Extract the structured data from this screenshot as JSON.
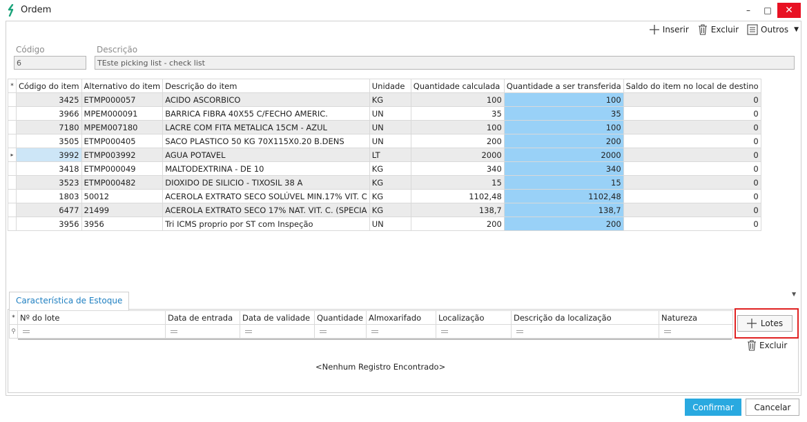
{
  "window": {
    "title": "Ordem",
    "minimize": "–",
    "maximize": "□",
    "close": "✕"
  },
  "toolbar": {
    "inserir": "Inserir",
    "excluir": "Excluir",
    "outros": "Outros",
    "icons": [
      "plus-icon",
      "trash-icon",
      "list-icon",
      "caret-down-icon"
    ]
  },
  "form": {
    "codigo_label": "Código",
    "codigo_value": "6",
    "descricao_label": "Descrição",
    "descricao_value": "TEste picking list - check list"
  },
  "items_grid": {
    "columns": [
      "Código do item",
      "Alternativo do item",
      "Descrição do item",
      "Unidade",
      "Quantidade calculada",
      "Quantidade a ser transferida",
      "Saldo do item no local de destino"
    ],
    "corner": "*",
    "current_row_marker": "▸",
    "rows": [
      {
        "codigo": "3425",
        "alternativo": "ETMP000057",
        "descricao": "ACIDO ASCORBICO",
        "unidade": "KG",
        "qtd_calc": "100",
        "qtd_transf": "100",
        "saldo": "0"
      },
      {
        "codigo": "3966",
        "alternativo": "MPEM000091",
        "descricao": "BARRICA FIBRA 40X55 C/FECHO AMERIC.",
        "unidade": "UN",
        "qtd_calc": "35",
        "qtd_transf": "35",
        "saldo": "0"
      },
      {
        "codigo": "7180",
        "alternativo": "MPEM007180",
        "descricao": "LACRE COM FITA METALICA 15CM - AZUL",
        "unidade": "UN",
        "qtd_calc": "100",
        "qtd_transf": "100",
        "saldo": "0"
      },
      {
        "codigo": "3505",
        "alternativo": "ETMP000405",
        "descricao": "SACO PLASTICO 50 KG 70X115X0.20 B.DENS",
        "unidade": "UN",
        "qtd_calc": "200",
        "qtd_transf": "200",
        "saldo": "0"
      },
      {
        "codigo": "3992",
        "alternativo": "ETMP003992",
        "descricao": "AGUA POTAVEL",
        "unidade": "LT",
        "qtd_calc": "2000",
        "qtd_transf": "2000",
        "saldo": "0"
      },
      {
        "codigo": "3418",
        "alternativo": "ETMP000049",
        "descricao": "MALTODEXTRINA - DE 10",
        "unidade": "KG",
        "qtd_calc": "340",
        "qtd_transf": "340",
        "saldo": "0"
      },
      {
        "codigo": "3523",
        "alternativo": "ETMP000482",
        "descricao": "DIOXIDO DE SILICIO - TIXOSIL 38 A",
        "unidade": "KG",
        "qtd_calc": "15",
        "qtd_transf": "15",
        "saldo": "0"
      },
      {
        "codigo": "1803",
        "alternativo": "50012",
        "descricao": "ACEROLA EXTRATO SECO SOLÚVEL MIN.17% VIT. C",
        "unidade": "KG",
        "qtd_calc": "1102,48",
        "qtd_transf": "1102,48",
        "saldo": "0"
      },
      {
        "codigo": "6477",
        "alternativo": "21499",
        "descricao": "ACEROLA EXTRATO SECO 17% NAT. VIT. C. (SPECIA",
        "unidade": "KG",
        "qtd_calc": "138,7",
        "qtd_transf": "138,7",
        "saldo": "0"
      },
      {
        "codigo": "3956",
        "alternativo": "3956",
        "descricao": "Tri ICMS proprio por ST com Inspeção",
        "unidade": "UN",
        "qtd_calc": "200",
        "qtd_transf": "200",
        "saldo": "0"
      }
    ]
  },
  "tab": {
    "label": "Característica de Estoque"
  },
  "lots_grid": {
    "corner": "*",
    "filter_marker": "⚲",
    "columns": [
      "Nº do lote",
      "Data de entrada",
      "Data de validade",
      "Quantidade",
      "Almoxarifado",
      "Localização",
      "Descrição da localização",
      "Natureza"
    ],
    "empty_message": "<Nenhum Registro Encontrado>"
  },
  "side_actions": {
    "lotes": "Lotes",
    "excluir": "Excluir"
  },
  "footer": {
    "confirmar": "Confirmar",
    "cancelar": "Cancelar"
  },
  "colors": {
    "accent": "#29a9e0",
    "highlight_cell": "#99d1f7",
    "selected_cell": "#cde6f7",
    "close_button": "#e81123",
    "callout": "#e02020",
    "tab_text": "#1e7fc1"
  }
}
